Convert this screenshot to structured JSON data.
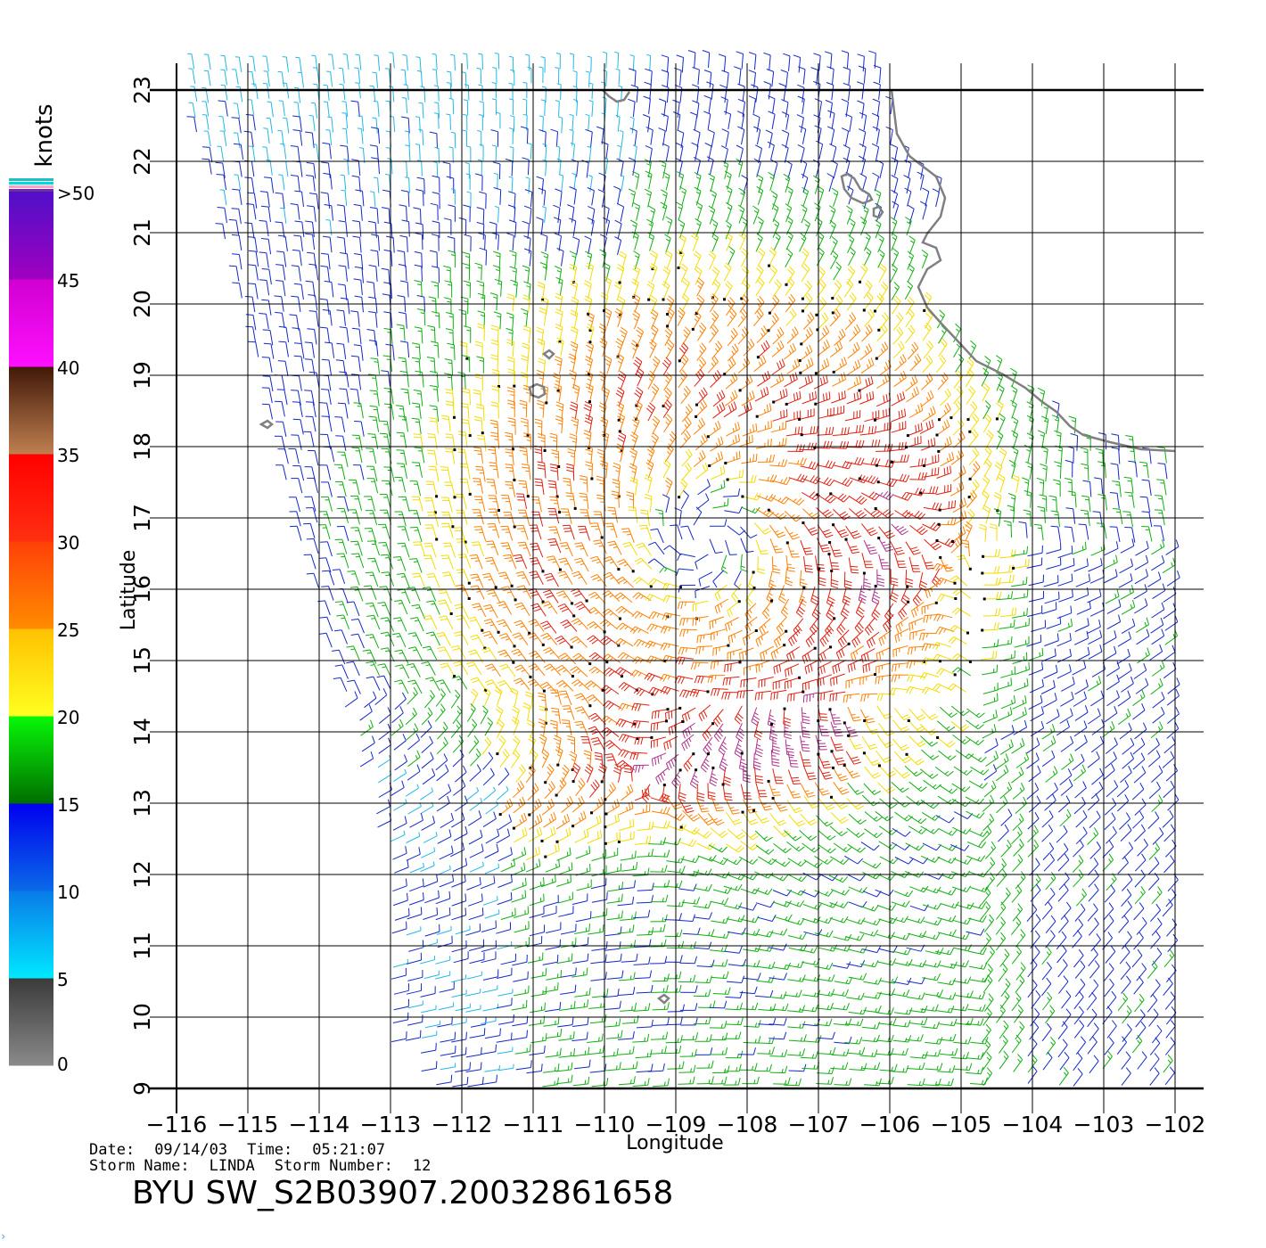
{
  "chart_data": {
    "type": "wind-barb-map",
    "xlabel": "Longitude",
    "ylabel": "Latitude",
    "xlim": [
      -116,
      -102
    ],
    "ylim": [
      9,
      23
    ],
    "x_ticks": [
      "−116",
      "−115",
      "−114",
      "−113",
      "−112",
      "−111",
      "−110",
      "−109",
      "−108",
      "−107",
      "−106",
      "−105",
      "−104",
      "−103",
      "−102"
    ],
    "y_ticks": [
      "9",
      "10",
      "11",
      "12",
      "13",
      "14",
      "15",
      "16",
      "17",
      "18",
      "19",
      "20",
      "21",
      "22",
      "23"
    ],
    "storm_center": {
      "lon": -108.6,
      "lat": 16.7
    },
    "colorbar": {
      "unit": "knots",
      "tick_labels": [
        "0",
        "5",
        "10",
        "15",
        "20",
        "25",
        "30",
        "35",
        "40",
        "45",
        ">50"
      ],
      "bands": [
        {
          "from": 0,
          "to": 5,
          "top": "#3a3a3a",
          "bottom": "#8a8a8a"
        },
        {
          "from": 5,
          "to": 10,
          "top": "#0a7ae8",
          "bottom": "#00e8ff"
        },
        {
          "from": 10,
          "to": 15,
          "top": "#0000ee",
          "bottom": "#0a6ae8"
        },
        {
          "from": 15,
          "to": 20,
          "top": "#08f808",
          "bottom": "#006e00"
        },
        {
          "from": 20,
          "to": 25,
          "top": "#ffc000",
          "bottom": "#ffff20"
        },
        {
          "from": 25,
          "to": 30,
          "top": "#ff4008",
          "bottom": "#ff8c00"
        },
        {
          "from": 30,
          "to": 35,
          "top": "#ff0000",
          "bottom": "#ff3010"
        },
        {
          "from": 35,
          "to": 40,
          "top": "#401808",
          "bottom": "#c08050"
        },
        {
          "from": 40,
          "to": 45,
          "top": "#d000d0",
          "bottom": "#ff10ff"
        },
        {
          "from": 45,
          "to": 50,
          "top": "#5010c8",
          "bottom": "#a000c0"
        }
      ]
    }
  },
  "info": {
    "date_label": "Date:",
    "date": "09/14/03",
    "time_label": "Time:",
    "time": "05:21:07",
    "storm_name_label": "Storm Name:",
    "storm_name": "LINDA",
    "storm_number_label": "Storm Number:",
    "storm_number": "12",
    "file_title": "BYU SW_S2B03907.20032861658"
  }
}
